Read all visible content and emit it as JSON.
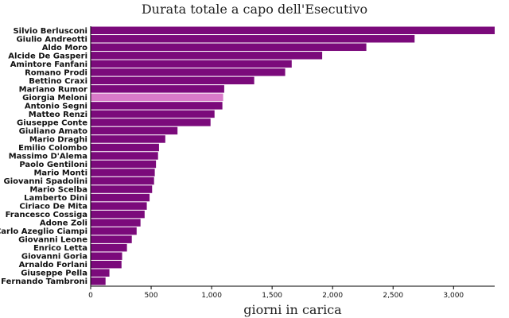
{
  "chart_data": {
    "type": "bar",
    "orientation": "horizontal",
    "title": "Durata totale a capo dell'Esecutivo",
    "xlabel": "giorni in carica",
    "ylabel": "",
    "xlim": [
      0,
      3340
    ],
    "xticks": [
      0,
      500,
      1000,
      1500,
      2000,
      2500,
      3000
    ],
    "xtick_labels": [
      "0",
      "500",
      "1,000",
      "1,500",
      "2,000",
      "2,500",
      "3,000"
    ],
    "bar_color": "#7b0a7b",
    "highlight_color": "#d97ac9",
    "highlight": "Giorgia Meloni",
    "categories": [
      "Silvio Berlusconi",
      "Giulio Andreotti",
      "Aldo Moro",
      "Alcide De Gasperi",
      "Amintore Fanfani",
      "Romano Prodi",
      "Bettino Craxi",
      "Mariano Rumor",
      "Giorgia Meloni",
      "Antonio Segni",
      "Matteo Renzi",
      "Giuseppe Conte",
      "Giuliano Amato",
      "Mario Draghi",
      "Emilio Colombo",
      "Massimo D'Alema",
      "Paolo Gentiloni",
      "Mario Monti",
      "Giovanni Spadolini",
      "Mario Scelba",
      "Lamberto Dini",
      "Ciriaco De Mita",
      "Francesco Cossiga",
      "Adone Zoli",
      "Carlo Azeglio Ciampi",
      "Giovanni Leone",
      "Enrico Letta",
      "Giovanni Goria",
      "Arnaldo Forlani",
      "Giuseppe Pella",
      "Fernando Tambroni"
    ],
    "values": [
      3340,
      2678,
      2279,
      1914,
      1662,
      1608,
      1352,
      1104,
      1095,
      1089,
      1024,
      991,
      718,
      617,
      565,
      557,
      540,
      530,
      524,
      508,
      487,
      464,
      446,
      412,
      380,
      340,
      300,
      260,
      255,
      155,
      123
    ]
  }
}
